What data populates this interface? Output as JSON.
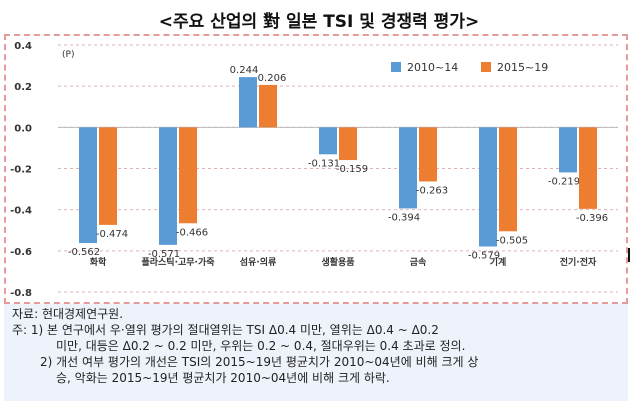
{
  "title": "<주요 산업의 對 일본 TSI 및 경쟁력 평가>",
  "chart_data": {
    "type": "bar",
    "unit_label": "(P)",
    "categories": [
      "화학",
      "플라스틱·고무·가죽",
      "섬유·의류",
      "생활용품",
      "금속",
      "기계",
      "전기·전자"
    ],
    "series": [
      {
        "name": "2010~14",
        "color": "#5b9bd5",
        "values": [
          -0.562,
          -0.571,
          0.244,
          -0.131,
          -0.394,
          -0.579,
          -0.219
        ]
      },
      {
        "name": "2015~19",
        "color": "#ed7d31",
        "values": [
          -0.474,
          -0.466,
          0.206,
          -0.159,
          -0.263,
          -0.505,
          -0.396
        ]
      }
    ],
    "value_labels": [
      [
        "-0.562",
        "-0.571",
        "0.244",
        "-0.131",
        "-0.394",
        "-0.579",
        "-0.219"
      ],
      [
        "-0.474",
        "-0.466",
        "0.206",
        "-0.159",
        "-0.263",
        "-0.505",
        "-0.396"
      ]
    ],
    "yticks": [
      "0.4",
      "0.2",
      "0.0",
      "-0.2",
      "-0.4",
      "-0.6",
      "-0.8"
    ],
    "ylim": [
      -0.8,
      0.4
    ],
    "grid": true,
    "legend_position": "top-right"
  },
  "notes": [
    "자료: 현대경제연구원.",
    "주: 1) 본 연구에서 우·열위 평가의 절대열위는 TSI  Δ0.4 미만, 열위는 Δ0.4 ~ Δ0.2",
    "미만, 대등은 Δ0.2 ~ 0.2 미만, 우위는 0.2 ~ 0.4, 절대우위는 0.4 초과로 정의.",
    "2) 개선 여부 평가의 개선은 TSI의 2015~19년 평균치가 2010~04년에 비해 크게 상",
    "승, 악화는 2015~19년 평균치가 2010~04년에 비해 크게 하락."
  ]
}
